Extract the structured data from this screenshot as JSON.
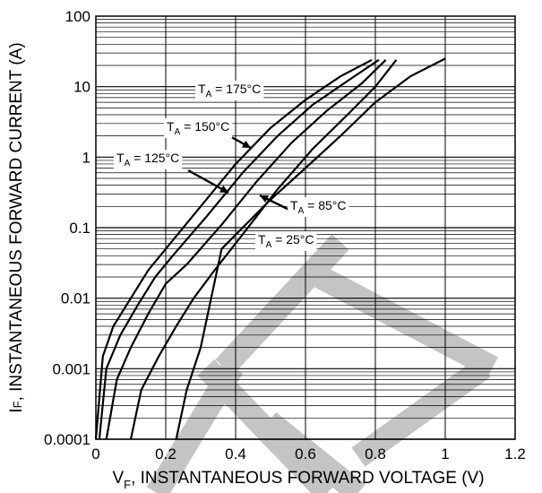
{
  "chart_data": {
    "type": "line",
    "title": "",
    "xlabel": {
      "prefix": "V",
      "sub": "F",
      "rest": ", INSTANTANEOUS FORWARD VOLTAGE (V)"
    },
    "ylabel": {
      "prefix": "I",
      "sub": "F",
      "rest": ", INSTANTANEOUS FORWARD CURRENT (A)"
    },
    "xlim": [
      0,
      1.2
    ],
    "ylim": [
      0.0001,
      100
    ],
    "yscale": "log",
    "grid": true,
    "x_ticks": [
      {
        "v": 0,
        "label": "0"
      },
      {
        "v": 0.2,
        "label": "0.2"
      },
      {
        "v": 0.4,
        "label": "0.4"
      },
      {
        "v": 0.6,
        "label": "0.6"
      },
      {
        "v": 0.8,
        "label": "0.8"
      },
      {
        "v": 1.0,
        "label": "1"
      },
      {
        "v": 1.2,
        "label": "1.2"
      }
    ],
    "y_ticks": [
      {
        "v": 100,
        "label": "100"
      },
      {
        "v": 10,
        "label": "10"
      },
      {
        "v": 1,
        "label": "1"
      },
      {
        "v": 0.1,
        "label": "0.1"
      },
      {
        "v": 0.01,
        "label": "0.01"
      },
      {
        "v": 0.001,
        "label": "0.001"
      },
      {
        "v": 0.0001,
        "label": "0.0001"
      }
    ],
    "series": [
      {
        "name": "TA = 175°C",
        "x": [
          0.0,
          0.02,
          0.05,
          0.1,
          0.15,
          0.2,
          0.3,
          0.4,
          0.5,
          0.6,
          0.7,
          0.79
        ],
        "y": [
          0.0001,
          0.0015,
          0.004,
          0.01,
          0.025,
          0.05,
          0.2,
          0.8,
          2.6,
          6.5,
          14,
          24
        ]
      },
      {
        "name": "TA = 150°C",
        "x": [
          0.01,
          0.03,
          0.07,
          0.12,
          0.17,
          0.22,
          0.32,
          0.42,
          0.52,
          0.62,
          0.72,
          0.81
        ],
        "y": [
          0.0001,
          0.001,
          0.003,
          0.008,
          0.02,
          0.04,
          0.15,
          0.6,
          2,
          5.5,
          12,
          24
        ]
      },
      {
        "name": "TA = 125°C",
        "x": [
          0.03,
          0.06,
          0.1,
          0.15,
          0.2,
          0.26,
          0.36,
          0.46,
          0.56,
          0.66,
          0.76,
          0.83
        ],
        "y": [
          0.0001,
          0.0007,
          0.002,
          0.006,
          0.016,
          0.03,
          0.11,
          0.45,
          1.6,
          4.5,
          11,
          24
        ]
      },
      {
        "name": "TA = 85°C",
        "x": [
          0.1,
          0.13,
          0.18,
          0.23,
          0.28,
          0.34,
          0.42,
          0.52,
          0.62,
          0.72,
          0.8,
          0.86
        ],
        "y": [
          0.0001,
          0.0005,
          0.0015,
          0.004,
          0.01,
          0.025,
          0.08,
          0.35,
          1.3,
          4,
          10,
          24
        ]
      },
      {
        "name": "TA = 25°C",
        "x": [
          0.23,
          0.26,
          0.3,
          0.33,
          0.36,
          0.42,
          0.5,
          0.6,
          0.7,
          0.8,
          0.9,
          1.0
        ],
        "y": [
          0.0001,
          0.0005,
          0.002,
          0.01,
          0.05,
          0.1,
          0.25,
          0.7,
          2,
          6,
          14,
          25
        ]
      }
    ],
    "annotations": [
      {
        "prefix": "T",
        "sub": "A",
        "rest": " = 175°C"
      },
      {
        "prefix": "T",
        "sub": "A",
        "rest": " = 150°C"
      },
      {
        "prefix": "T",
        "sub": "A",
        "rest": " = 125°C"
      },
      {
        "prefix": "T",
        "sub": "A",
        "rest": " = 85°C"
      },
      {
        "prefix": "T",
        "sub": "A",
        "rest": " = 25°C"
      }
    ]
  }
}
